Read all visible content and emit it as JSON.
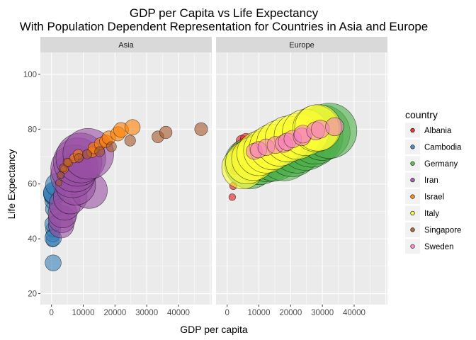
{
  "chart_data": {
    "type": "scatter",
    "title": "GDP per Capita  vs Life Expectancy",
    "subtitle": "With Population Dependent Representation for Countries in Asia and Europe",
    "xlabel": "GDP per capita",
    "ylabel": "Life Expectancy",
    "xlim": [
      -3500,
      50500
    ],
    "ylim": [
      16,
      108
    ],
    "x_ticks": [
      0,
      10000,
      20000,
      30000,
      40000
    ],
    "x_tick_labels": [
      "0",
      "10000",
      "20000",
      "30000",
      "40000"
    ],
    "y_ticks": [
      20,
      40,
      60,
      80,
      100
    ],
    "y_tick_labels": [
      "20",
      "40",
      "60",
      "80",
      "100"
    ],
    "grid": true,
    "legend_position": "right",
    "legend_title": "country",
    "panels": [
      {
        "strip": "Asia",
        "continent": "Asia"
      },
      {
        "strip": "Europe",
        "continent": "Europe"
      }
    ],
    "legend": [
      {
        "label": "Albania",
        "color": "#E41A1C"
      },
      {
        "label": "Cambodia",
        "color": "#377EB8"
      },
      {
        "label": "Germany",
        "color": "#4DAF4A"
      },
      {
        "label": "Iran",
        "color": "#984EA3"
      },
      {
        "label": "Israel",
        "color": "#FF7F00"
      },
      {
        "label": "Italy",
        "color": "#FFFF33"
      },
      {
        "label": "Singapore",
        "color": "#A65628"
      },
      {
        "label": "Sweden",
        "color": "#F781BF"
      }
    ],
    "series": [
      {
        "name": "Cambodia",
        "continent": "Asia",
        "color": "#377EB8",
        "x": [
          368,
          434,
          523,
          422,
          525,
          525,
          684,
          683,
          682,
          734,
          896,
          1713
        ],
        "y": [
          39.4,
          41.4,
          43.4,
          45.4,
          40.3,
          31.2,
          50.9,
          53.9,
          55.8,
          56.5,
          56.8,
          59.7
        ],
        "pop": [
          4.69,
          5.32,
          6.08,
          6.96,
          7.45,
          6.98,
          7.27,
          8.37,
          10.15,
          11.78,
          12.93,
          14.13
        ]
      },
      {
        "name": "Iran",
        "continent": "Asia",
        "color": "#984EA3",
        "x": [
          3035,
          3291,
          3508,
          4186,
          5907,
          11889,
          7608,
          6643,
          7235,
          8264,
          9241,
          11606
        ],
        "y": [
          44.9,
          47.2,
          49.3,
          52.5,
          55.2,
          57.7,
          59.6,
          63.0,
          65.7,
          68.0,
          69.5,
          71.0
        ],
        "pop": [
          17.27,
          19.79,
          22.87,
          26.54,
          30.61,
          35.48,
          43.07,
          51.89,
          60.4,
          63.33,
          66.91,
          69.45
        ]
      },
      {
        "name": "Israel",
        "continent": "Asia",
        "color": "#FF7F00",
        "x": [
          4087,
          5385,
          7106,
          8393,
          12786,
          13306,
          15367,
          17122,
          18051,
          20896,
          21905,
          25523
        ],
        "y": [
          65.4,
          67.8,
          69.4,
          70.8,
          71.6,
          73.1,
          74.7,
          75.6,
          76.9,
          78.3,
          79.7,
          80.7
        ],
        "pop": [
          1.62,
          1.94,
          2.31,
          2.69,
          3.1,
          3.5,
          3.86,
          4.37,
          4.94,
          5.53,
          6.03,
          6.43
        ]
      },
      {
        "name": "Singapore",
        "continent": "Asia",
        "color": "#A65628",
        "x": [
          2315,
          2843,
          3675,
          4977,
          8597,
          11210,
          15169,
          18862,
          24769,
          33519,
          36023,
          47143
        ],
        "y": [
          60.4,
          63.2,
          65.8,
          67.9,
          69.5,
          70.8,
          71.8,
          73.6,
          75.8,
          77.2,
          78.8,
          80.0
        ],
        "pop": [
          1.13,
          1.45,
          1.75,
          1.98,
          2.15,
          2.33,
          2.65,
          2.79,
          3.24,
          3.8,
          4.2,
          4.55
        ]
      },
      {
        "name": "Albania",
        "continent": "Europe",
        "color": "#E41A1C",
        "x": [
          1601,
          1942,
          2313,
          2760,
          3313,
          3533,
          3631,
          3739,
          2497,
          3193,
          4604,
          5937
        ],
        "y": [
          55.2,
          59.3,
          64.8,
          66.2,
          67.7,
          68.9,
          70.4,
          72.0,
          71.6,
          73.0,
          75.7,
          76.4
        ],
        "pop": [
          1.28,
          1.48,
          1.73,
          1.98,
          2.26,
          2.51,
          2.78,
          3.08,
          3.33,
          3.43,
          3.51,
          3.6
        ]
      },
      {
        "name": "Germany",
        "continent": "Europe",
        "color": "#4DAF4A",
        "x": [
          7144,
          10188,
          12902,
          14746,
          18016,
          20513,
          22032,
          24639,
          26505,
          27789,
          30036,
          32170
        ],
        "y": [
          67.5,
          69.1,
          70.3,
          70.8,
          71.0,
          72.5,
          73.8,
          74.8,
          76.1,
          77.3,
          78.7,
          79.4
        ],
        "pop": [
          69.15,
          71.02,
          73.74,
          76.37,
          78.72,
          78.16,
          78.34,
          77.72,
          80.6,
          82.01,
          82.35,
          82.4
        ]
      },
      {
        "name": "Italy",
        "continent": "Europe",
        "color": "#FFFF33",
        "x": [
          4931,
          6249,
          8244,
          10022,
          12269,
          14256,
          16537,
          19208,
          22014,
          24675,
          27968,
          28570
        ],
        "y": [
          65.9,
          67.8,
          69.2,
          71.1,
          72.2,
          73.5,
          74.9,
          76.4,
          77.4,
          78.8,
          80.2,
          80.5
        ],
        "pop": [
          47.67,
          49.18,
          50.84,
          52.67,
          54.46,
          56.06,
          56.73,
          56.98,
          56.8,
          57.48,
          57.93,
          58.15
        ]
      },
      {
        "name": "Sweden",
        "continent": "Europe",
        "color": "#F781BF",
        "x": [
          8528,
          9912,
          12329,
          15258,
          17832,
          18855,
          20667,
          23587,
          23880,
          27879,
          29341,
          33860
        ],
        "y": [
          71.9,
          72.5,
          73.4,
          74.2,
          74.7,
          75.4,
          76.4,
          77.2,
          78.2,
          79.4,
          80.0,
          80.9
        ],
        "pop": [
          7.12,
          7.36,
          7.56,
          7.87,
          8.12,
          8.25,
          8.32,
          8.42,
          8.72,
          8.9,
          8.95,
          9.03
        ]
      }
    ]
  }
}
